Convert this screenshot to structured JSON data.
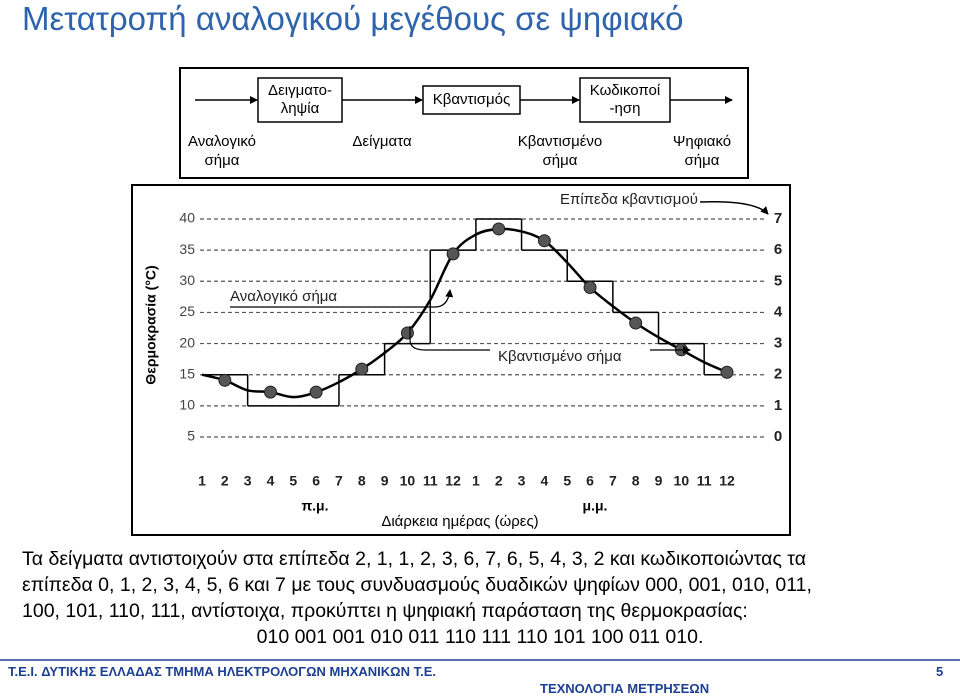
{
  "title": "Μετατροπή αναλογικού μεγέθους σε ψηφιακό",
  "diagram": {
    "blocks": [
      "Δειγματο-\nληψία",
      "Κβαντισμός",
      "Κωδικοποί\n-ηση"
    ],
    "signals": [
      "Αναλογικό\nσήμα",
      "Δείγματα",
      "Κβαντισμένο\nσήμα",
      "Ψηφιακό\nσήμα"
    ]
  },
  "chart_data": {
    "type": "line",
    "ylabel": "Θερμοκρασία (°C)",
    "xlabel": "Διάρκεια ημέρας (ώρες)",
    "periods": [
      "π.μ.",
      "μ.μ."
    ],
    "annotation": "Επίπεδα κβαντισμού",
    "categories": [
      "1",
      "2",
      "3",
      "4",
      "5",
      "6",
      "7",
      "8",
      "9",
      "10",
      "11",
      "12",
      "1",
      "2",
      "3",
      "4",
      "5",
      "6",
      "7",
      "8",
      "9",
      "10",
      "11",
      "12"
    ],
    "series": [
      {
        "name": "Αναλογικό σήμα",
        "color": "#000000",
        "values": [
          15,
          14.1,
          12.5,
          12.2,
          11.4,
          12.2,
          13.8,
          15.9,
          18.5,
          21.7,
          27,
          34.4,
          37.5,
          38.4,
          38,
          36.5,
          33,
          29,
          26,
          23.3,
          21,
          19,
          17,
          15.4
        ]
      },
      {
        "name": "Κβαντισμένο σήμα",
        "color": "#000000",
        "axis": "y2",
        "values": [
          null,
          2,
          null,
          1,
          null,
          1,
          null,
          2,
          null,
          3,
          null,
          6,
          null,
          7,
          null,
          6,
          null,
          5,
          null,
          4,
          null,
          3,
          null,
          2
        ]
      }
    ],
    "ylim": [
      5,
      40
    ],
    "yticks": [
      5,
      10,
      15,
      20,
      25,
      30,
      35,
      40
    ],
    "y2lim": [
      0,
      7
    ],
    "y2ticks": [
      0,
      1,
      2,
      3,
      4,
      5,
      6,
      7
    ],
    "grid": true
  },
  "text": {
    "lines": [
      "Τα δείγματα αντιστοιχούν στα επίπεδα 2, 1, 1, 2, 3, 6, 7, 6, 5, 4, 3, 2 και κωδικοποιώντας τα",
      "επίπεδα 0, 1, 2, 3, 4, 5, 6 και 7 με τους συνδυασμούς δυαδικών ψηφίων 000, 001, 010, 011,",
      "100, 101, 110, 111, αντίστοιχα, προκύπτει η ψηφιακή παράσταση της θερμοκρασίας:",
      "010 001 001 010 011 110 111 110 101 100 011 010."
    ]
  },
  "footer": {
    "left": "T.E.I. ΔΥΤΙΚΗΣ ΕΛΛΑΔΑΣ   ΤΜΗΜΑ ΗΛΕΚΤΡΟΛΟΓΩΝ ΜΗΧΑΝΙΚΩΝ T.E.",
    "course": "ΤΕΧΝΟΛΟΓΙΑ ΜΕΤΡΗΣΕΩΝ",
    "page": "5"
  }
}
